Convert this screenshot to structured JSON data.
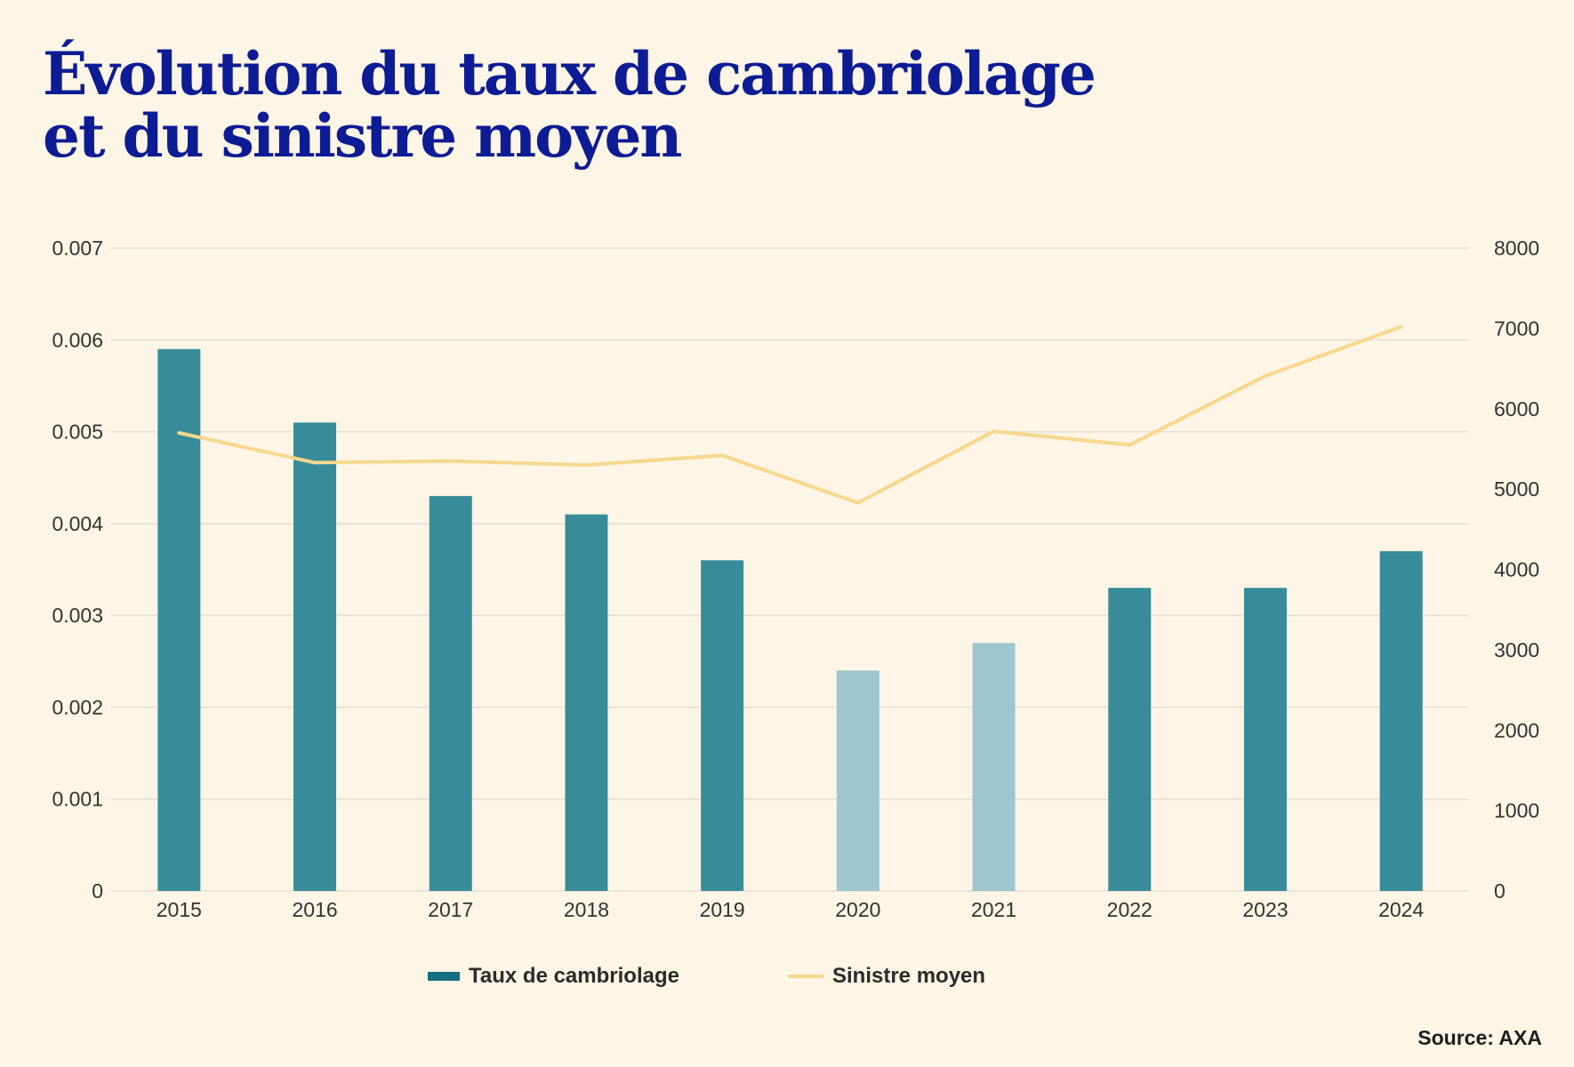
{
  "title_line1": "Évolution du taux de cambriolage",
  "title_line2": "et du sinistre moyen",
  "source": "Source: AXA",
  "colors": {
    "background": "#fdf5e6",
    "title": "#0d1b94",
    "bar": "#388c99",
    "bar_light": "#9dc6cf",
    "line": "#f6d88e",
    "legend_bar": "#146f82",
    "grid": "#e4ddd0"
  },
  "chart_data": {
    "type": "bar",
    "categories": [
      "2015",
      "2016",
      "2017",
      "2018",
      "2019",
      "2020",
      "2021",
      "2022",
      "2023",
      "2024"
    ],
    "series": [
      {
        "name": "Taux de cambriolage",
        "type": "bar",
        "axis": "left",
        "values": [
          0.0059,
          0.0051,
          0.0043,
          0.0041,
          0.0036,
          0.0024,
          0.0027,
          0.0033,
          0.0033,
          0.0037
        ],
        "highlight_light": [
          "2020",
          "2021"
        ]
      },
      {
        "name": "Sinistre moyen",
        "type": "line",
        "axis": "right",
        "values": [
          5700,
          5330,
          5350,
          5300,
          5420,
          4830,
          5720,
          5550,
          6410,
          7020
        ]
      }
    ],
    "y_left": {
      "ticks": [
        "0",
        "0.001",
        "0.002",
        "0.003",
        "0.004",
        "0.005",
        "0.006",
        "0.007"
      ],
      "ylim": [
        0,
        0.007
      ]
    },
    "y_right": {
      "ticks": [
        "0",
        "1000",
        "2000",
        "3000",
        "4000",
        "5000",
        "6000",
        "7000",
        "8000"
      ],
      "ylim": [
        0,
        8000
      ]
    },
    "grid": true,
    "legend_position": "bottom"
  }
}
